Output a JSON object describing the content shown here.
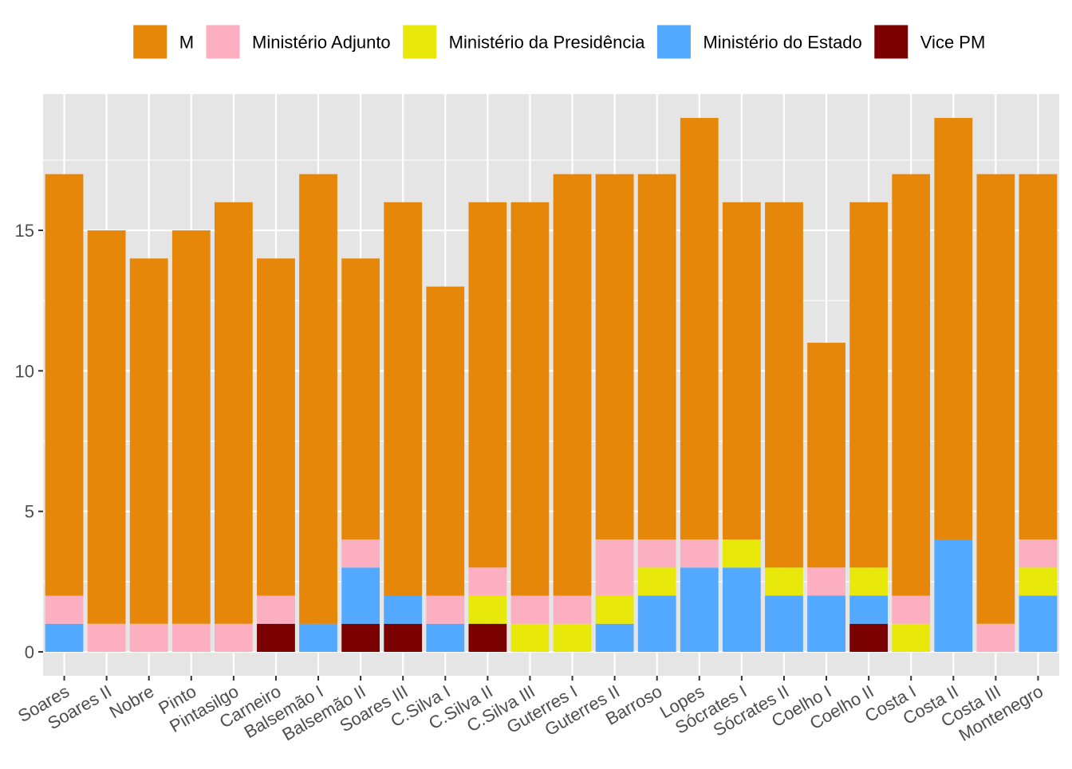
{
  "chart_data": {
    "type": "bar",
    "stacked": true,
    "categories": [
      "Soares",
      "Soares II",
      "Nobre",
      "Pinto",
      "Pintasilgo",
      "Carneiro",
      "Balsemão I",
      "Balsemão II",
      "Soares III",
      "C.Silva I",
      "C.Silva II",
      "C.Silva III",
      "Guterres I",
      "Guterres II",
      "Barroso",
      "Lopes",
      "Sócrates I",
      "Sócrates II",
      "Coelho I",
      "Coelho II",
      "Costa I",
      "Costa II",
      "Costa III",
      "Montenegro"
    ],
    "series": [
      {
        "name": "Vice PM",
        "color": "#7B0000",
        "values": [
          0,
          0,
          0,
          0,
          0,
          1,
          0,
          1,
          1,
          0,
          1,
          0,
          0,
          0,
          0,
          0,
          0,
          0,
          0,
          1,
          0,
          0,
          0,
          0
        ]
      },
      {
        "name": "Ministério do Estado",
        "color": "#53A9FF",
        "values": [
          1,
          0,
          0,
          0,
          0,
          0,
          1,
          2,
          1,
          1,
          0,
          0,
          0,
          1,
          2,
          3,
          3,
          2,
          2,
          1,
          0,
          4,
          0,
          2
        ]
      },
      {
        "name": "Ministério da Presidência",
        "color": "#E8E80A",
        "values": [
          0,
          0,
          0,
          0,
          0,
          0,
          0,
          0,
          0,
          0,
          1,
          1,
          1,
          1,
          1,
          0,
          1,
          1,
          0,
          1,
          1,
          0,
          0,
          1
        ]
      },
      {
        "name": "Ministério Adjunto",
        "color": "#FBAFC1",
        "values": [
          1,
          1,
          1,
          1,
          1,
          1,
          0,
          1,
          0,
          1,
          1,
          1,
          1,
          2,
          1,
          1,
          0,
          0,
          1,
          0,
          1,
          0,
          1,
          1
        ]
      },
      {
        "name": "M",
        "color": "#E6870A",
        "values": [
          15,
          14,
          13,
          14,
          15,
          12,
          16,
          10,
          14,
          11,
          13,
          14,
          15,
          13,
          13,
          15,
          12,
          13,
          8,
          13,
          15,
          15,
          16,
          13
        ]
      }
    ],
    "legend_order": [
      "M",
      "Ministério Adjunto",
      "Ministério da Presidência",
      "Ministério do Estado",
      "Vice PM"
    ],
    "yticks": [
      0,
      5,
      10,
      15
    ],
    "ylim": [
      -0.85,
      19.85
    ],
    "xlabel": "",
    "ylabel": "",
    "title": "",
    "legend_position": "top",
    "grid": true,
    "panel_background": "#E5E5E5",
    "grid_color": "#FFFFFF"
  }
}
